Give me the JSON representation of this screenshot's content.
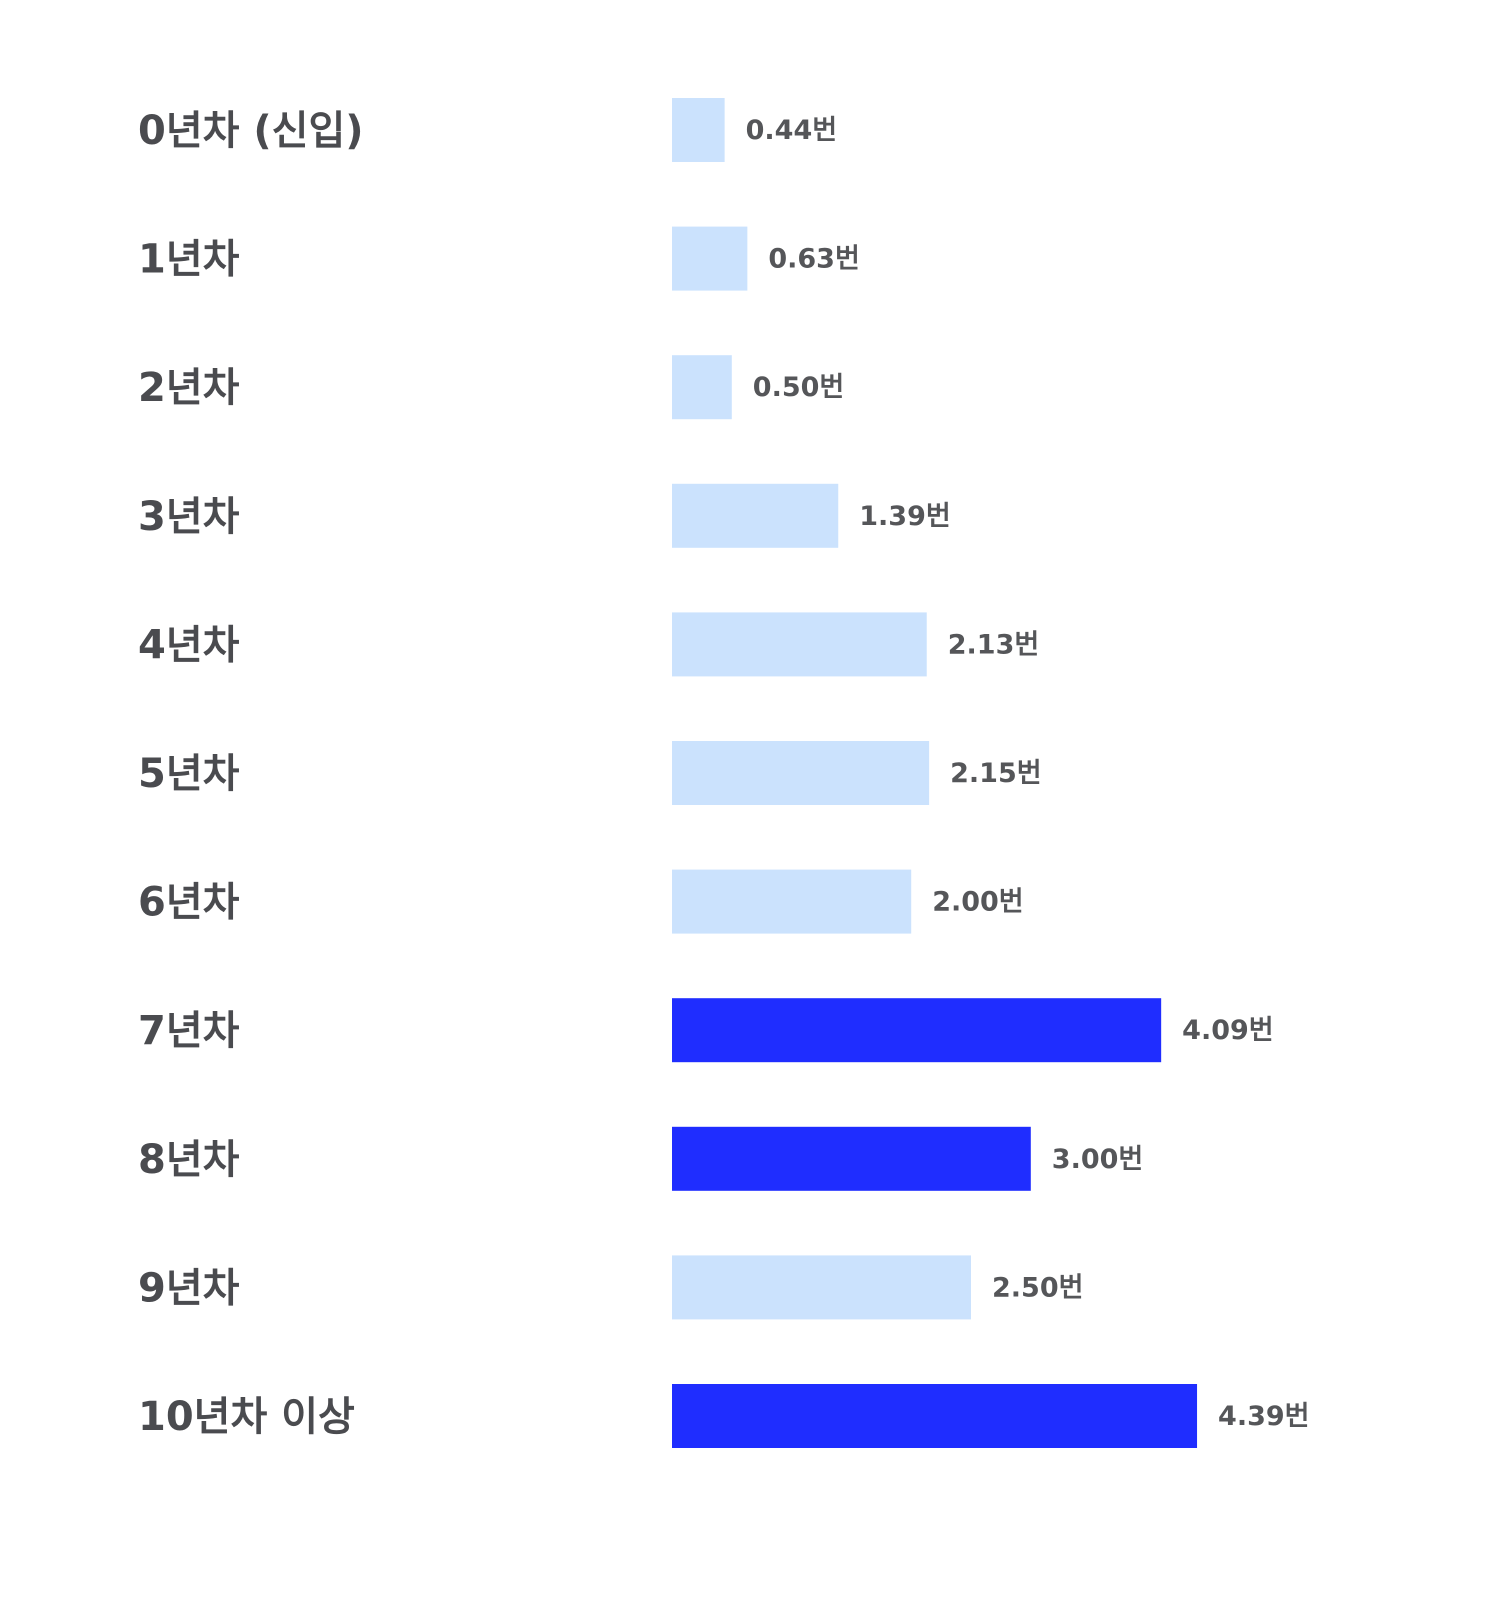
{
  "chart_data": {
    "type": "bar",
    "orientation": "horizontal",
    "categories": [
      "0년차 (신입)",
      "1년차",
      "2년차",
      "3년차",
      "4년차",
      "5년차",
      "6년차",
      "7년차",
      "8년차",
      "9년차",
      "10년차 이상"
    ],
    "values": [
      0.44,
      0.63,
      0.5,
      1.39,
      2.13,
      2.15,
      2.0,
      4.09,
      3.0,
      2.5,
      4.39
    ],
    "value_labels": [
      "0.44번",
      "0.63번",
      "0.50번",
      "1.39번",
      "2.13번",
      "2.15번",
      "2.00번",
      "4.09번",
      "3.00번",
      "2.50번",
      "4.39번"
    ],
    "highlighted": [
      false,
      false,
      false,
      false,
      false,
      false,
      false,
      true,
      true,
      false,
      true
    ],
    "colors": {
      "base": "#cbe2fd",
      "highlight": "#1f2dff",
      "category_text": "#4a4b4f",
      "value_text": "#555659"
    },
    "xlim": [
      0,
      5
    ],
    "grid": false,
    "legend": "none",
    "title": "",
    "xlabel": "",
    "ylabel": ""
  }
}
